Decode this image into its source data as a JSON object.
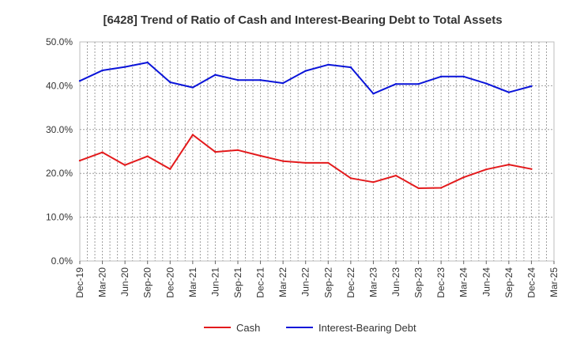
{
  "chart_data": {
    "type": "line",
    "title": "[6428]  Trend of Ratio of Cash and Interest-Bearing Debt to Total Assets",
    "xlabel": "",
    "ylabel": "",
    "categories": [
      "Dec-19",
      "Mar-20",
      "Jun-20",
      "Sep-20",
      "Dec-20",
      "Mar-21",
      "Jun-21",
      "Sep-21",
      "Dec-21",
      "Mar-22",
      "Jun-22",
      "Sep-22",
      "Dec-22",
      "Mar-23",
      "Jun-23",
      "Sep-23",
      "Dec-23",
      "Mar-24",
      "Jun-24",
      "Sep-24",
      "Dec-24",
      "Mar-25"
    ],
    "ylim": [
      0,
      50
    ],
    "yticks": [
      "0.0%",
      "10.0%",
      "20.0%",
      "30.0%",
      "40.0%",
      "50.0%"
    ],
    "grid": true,
    "legend_position": "bottom",
    "series": [
      {
        "name": "Cash",
        "color": "#e31a1c",
        "values": [
          22.9,
          24.8,
          21.9,
          23.9,
          21.0,
          28.8,
          24.9,
          25.3,
          24.0,
          22.8,
          22.4,
          22.4,
          18.9,
          18.0,
          19.5,
          16.6,
          16.7,
          19.1,
          20.9,
          22.0,
          21.0,
          null
        ]
      },
      {
        "name": "Interest-Bearing Debt",
        "color": "#0a14d9",
        "values": [
          41.1,
          43.5,
          44.3,
          45.3,
          40.8,
          39.6,
          42.5,
          41.3,
          41.3,
          40.6,
          43.4,
          44.8,
          44.2,
          38.2,
          40.4,
          40.4,
          42.1,
          42.1,
          40.5,
          38.5,
          39.9,
          null
        ]
      }
    ]
  }
}
